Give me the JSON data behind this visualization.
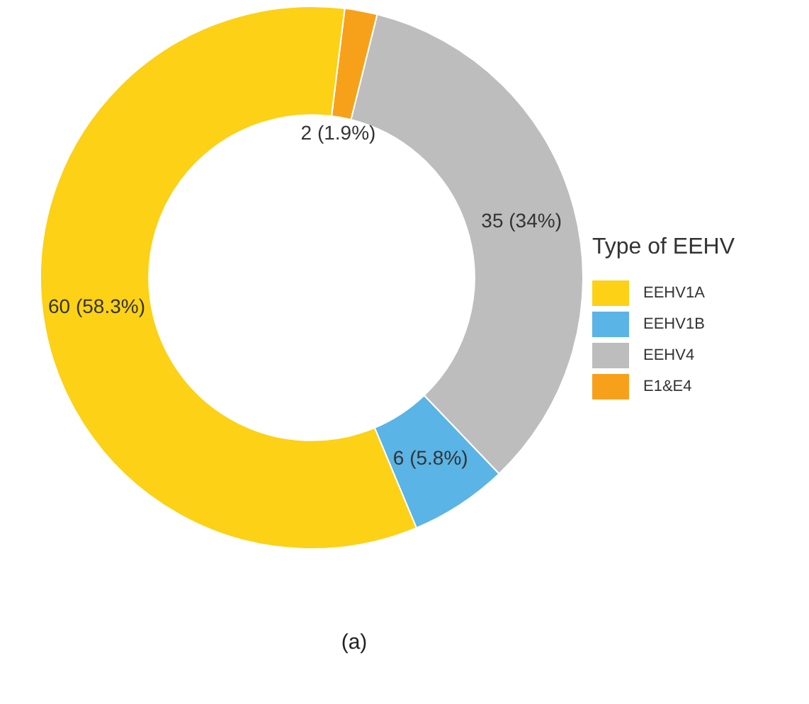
{
  "chart_data": {
    "type": "donut",
    "legend_title": "Type of EEHV",
    "legend": "right",
    "categories": [
      "EEHV1A",
      "EEHV1B",
      "EEHV4",
      "E1&E4"
    ],
    "values": [
      60,
      6,
      35,
      2
    ],
    "colors": [
      "#fcd116",
      "#5ab4e5",
      "#bdbdbd",
      "#f7a11a"
    ],
    "value_labels": [
      "60 (58.3%)",
      "6 (5.8%)",
      "35 (34%)",
      "2 (1.9%)"
    ],
    "annotations": [
      "(a)"
    ]
  }
}
